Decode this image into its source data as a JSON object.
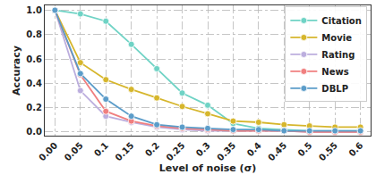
{
  "chart_data": {
    "type": "line",
    "x_label": "Level of noise (σ)",
    "y_label": "Accuracy",
    "categories": [
      "0.00",
      "0.05",
      "0.1",
      "0.15",
      "0.2",
      "0.25",
      "0.3",
      "0.35",
      "0.4",
      "0.45",
      "0.5",
      "0.55",
      "0.6"
    ],
    "series": [
      {
        "name": "Citation",
        "color": "#6fd3c5",
        "values": [
          1.0,
          0.97,
          0.91,
          0.72,
          0.52,
          0.32,
          0.22,
          0.07,
          0.03,
          0.02,
          0.01,
          0.01,
          0.01
        ]
      },
      {
        "name": "Movie",
        "color": "#d6b62c",
        "values": [
          1.0,
          0.57,
          0.43,
          0.35,
          0.28,
          0.21,
          0.15,
          0.09,
          0.08,
          0.06,
          0.05,
          0.04,
          0.04
        ]
      },
      {
        "name": "Rating",
        "color": "#bcaede",
        "values": [
          1.0,
          0.34,
          0.13,
          0.08,
          0.04,
          0.02,
          0.01,
          0.01,
          0.01,
          0.01,
          0.0,
          0.0,
          0.0
        ]
      },
      {
        "name": "News",
        "color": "#f07f7f",
        "values": [
          1.0,
          0.47,
          0.17,
          0.09,
          0.05,
          0.03,
          0.02,
          0.01,
          0.01,
          0.01,
          0.0,
          0.0,
          0.0
        ]
      },
      {
        "name": "DBLP",
        "color": "#5b9cc9",
        "values": [
          1.0,
          0.48,
          0.27,
          0.13,
          0.06,
          0.04,
          0.03,
          0.02,
          0.02,
          0.01,
          0.01,
          0.01,
          0.01
        ]
      }
    ],
    "ylim": [
      -0.03,
      1.04
    ],
    "yticks": [
      {
        "value": 0,
        "label": "0.0"
      },
      0.2,
      0.4,
      0.6,
      0.8,
      {
        "value": 1,
        "label": "1.0"
      }
    ],
    "grid": true,
    "legend": "upper right",
    "marker": "circle",
    "line_style": "solid"
  }
}
